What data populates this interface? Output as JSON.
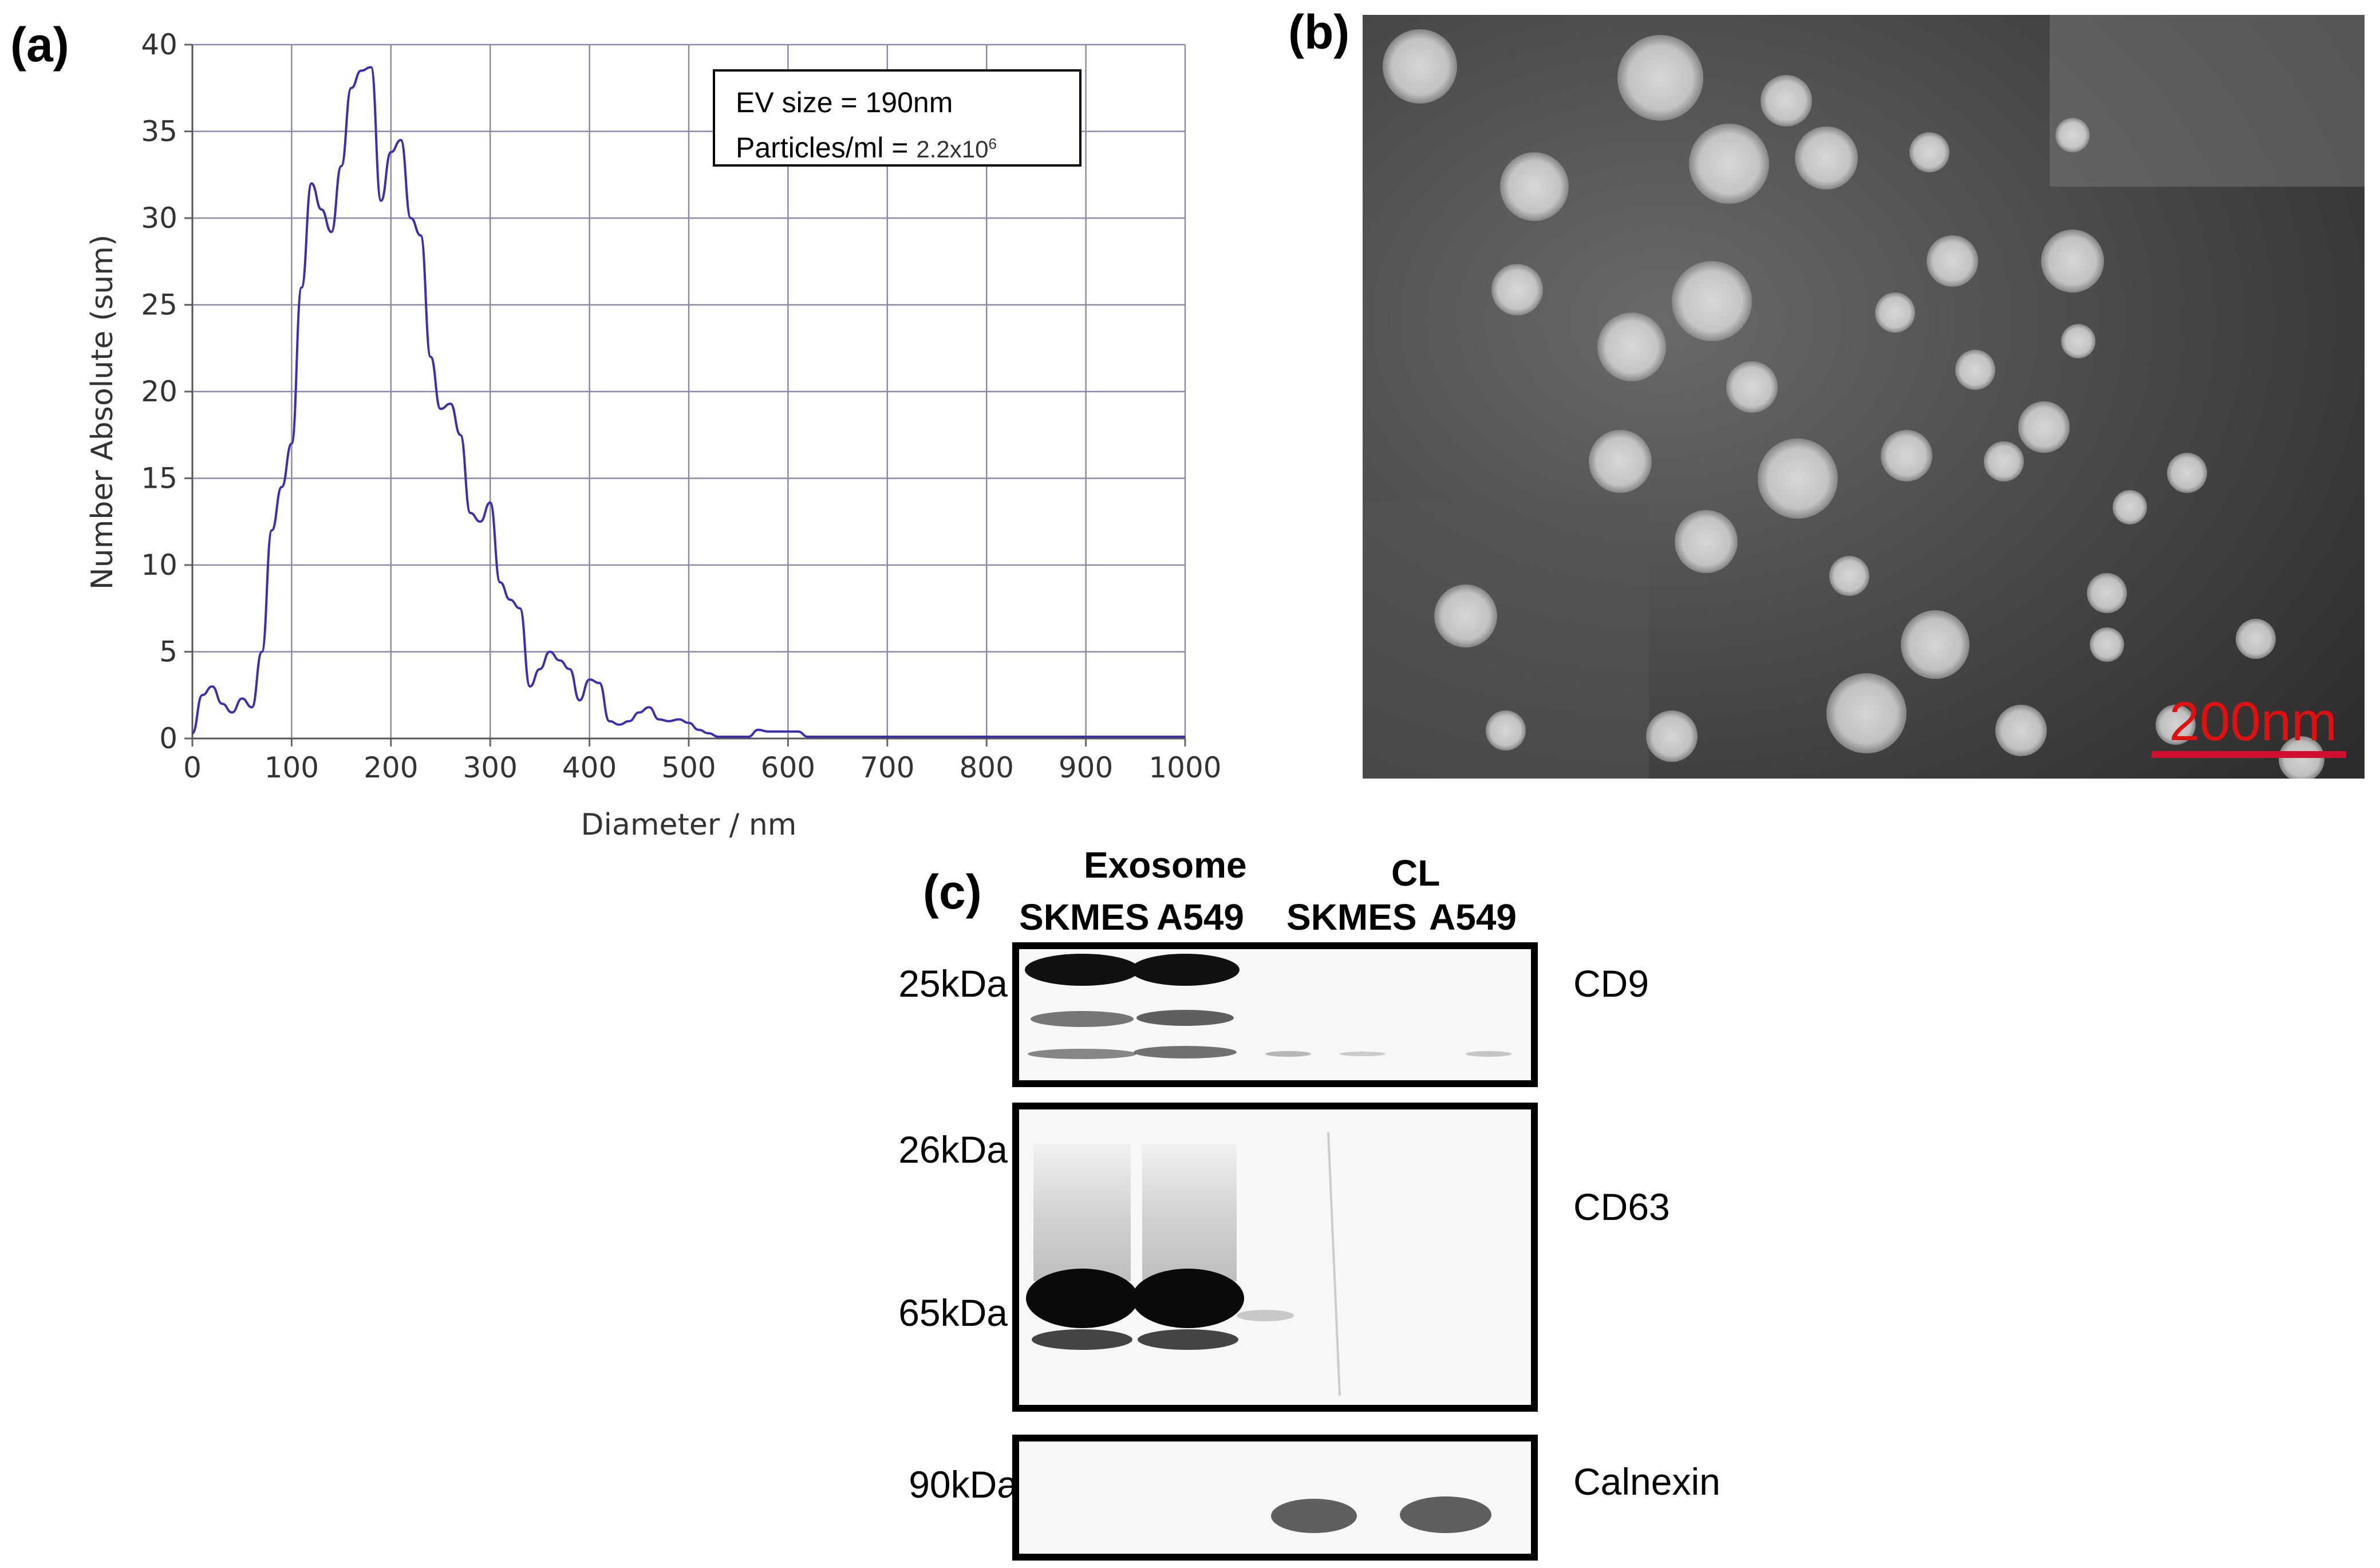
{
  "panel_labels": {
    "a": "(a)",
    "b": "(b)",
    "c": "(c)"
  },
  "chart_data": {
    "type": "line",
    "xlabel": "Diameter / nm",
    "ylabel": "Number Absolute (sum)",
    "xlim": [
      0,
      1000
    ],
    "ylim": [
      0,
      40
    ],
    "x_ticks": [
      "0",
      "100",
      "200",
      "300",
      "400",
      "500",
      "600",
      "700",
      "800",
      "900",
      "1000"
    ],
    "y_ticks": [
      "0",
      "5",
      "10",
      "15",
      "20",
      "25",
      "30",
      "35",
      "40"
    ],
    "grid": true,
    "line_color": "#3b2fb0",
    "series": [
      {
        "x": [
          0,
          10,
          20,
          30,
          40,
          50,
          60,
          70,
          80,
          90,
          100,
          110,
          120,
          130,
          140,
          150,
          160,
          170,
          180,
          190,
          200,
          210,
          220,
          230,
          240,
          250,
          260,
          270,
          280,
          290,
          300,
          310,
          320,
          330,
          340,
          350,
          360,
          370,
          380,
          390,
          400,
          410,
          420,
          430,
          440,
          450,
          460,
          470,
          480,
          490,
          500,
          510,
          520,
          530,
          540,
          550,
          560,
          570,
          580,
          590,
          600,
          610,
          620,
          640,
          700,
          800,
          900,
          1000
        ],
        "y": [
          0.3,
          2.5,
          3.0,
          2.0,
          1.5,
          2.3,
          1.8,
          5.0,
          12.0,
          14.5,
          17.0,
          26.0,
          32.0,
          30.5,
          29.2,
          33.0,
          37.5,
          38.5,
          38.7,
          31.0,
          33.8,
          34.5,
          30.0,
          29.0,
          22.0,
          19.0,
          19.3,
          17.5,
          13.0,
          12.5,
          13.6,
          9.0,
          8.0,
          7.5,
          3.0,
          4.0,
          5.0,
          4.5,
          4.0,
          2.2,
          3.4,
          3.2,
          1.0,
          0.8,
          1.0,
          1.5,
          1.8,
          1.1,
          1.0,
          1.1,
          0.9,
          0.5,
          0.3,
          0.1,
          0.1,
          0.1,
          0.1,
          0.5,
          0.4,
          0.4,
          0.4,
          0.4,
          0.1,
          0.1,
          0.1,
          0.1,
          0.1,
          0.1
        ]
      }
    ],
    "annotation": {
      "line1": "EV size = 190nm",
      "line2_label": "Particles/ml =",
      "line2_mantissa": "2.2x10",
      "line2_exponent": "6"
    }
  },
  "tem": {
    "scale_label": "200nm",
    "scale_color": "#e01010"
  },
  "western_blot": {
    "group_exosome": "Exosome",
    "group_cl": "CL",
    "lanes": [
      "SKMES",
      "A549",
      "SKMES",
      "A549"
    ],
    "mw_labels": {
      "cd9": "25kDa",
      "cd63_top": "26kDa",
      "cd63_bottom": "65kDa",
      "calnexin": "90kDa"
    },
    "markers": {
      "cd9": "CD9",
      "cd63": "CD63",
      "calnexin": "Calnexin"
    }
  }
}
